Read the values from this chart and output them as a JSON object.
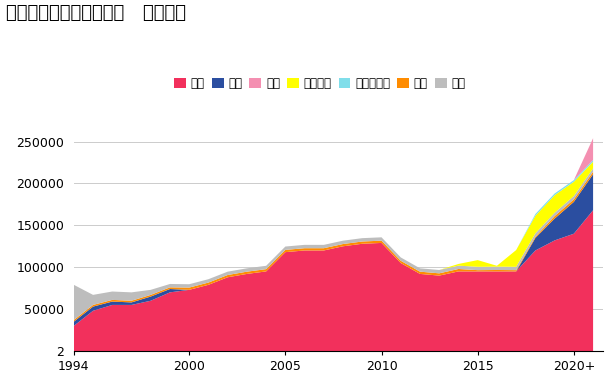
{
  "title": "全球主要国家稀土矿产量   单位：吨",
  "years": [
    1994,
    1995,
    1996,
    1997,
    1998,
    1999,
    2000,
    2001,
    2002,
    2003,
    2004,
    2005,
    2006,
    2007,
    2008,
    2009,
    2010,
    2011,
    2012,
    2013,
    2014,
    2015,
    2016,
    2017,
    2018,
    2019,
    2020,
    2021
  ],
  "series": {
    "中国": [
      30000,
      48000,
      55000,
      55000,
      60000,
      70000,
      73000,
      79000,
      88000,
      92000,
      95000,
      118000,
      120000,
      120000,
      125000,
      128000,
      129000,
      105000,
      92000,
      90000,
      95000,
      95000,
      95000,
      95000,
      120000,
      132000,
      140000,
      168000
    ],
    "美国": [
      5000,
      5000,
      4000,
      3000,
      5000,
      4000,
      0,
      0,
      0,
      0,
      0,
      0,
      0,
      0,
      0,
      0,
      0,
      0,
      0,
      0,
      0,
      0,
      0,
      0,
      15000,
      26000,
      38000,
      43000
    ],
    "印度": [
      2000,
      2000,
      2000,
      2000,
      2000,
      2000,
      2700,
      2700,
      2700,
      2700,
      2700,
      2700,
      2700,
      2700,
      2700,
      2700,
      2700,
      2700,
      2700,
      2700,
      2900,
      1500,
      1700,
      1500,
      1500,
      3000,
      3000,
      3000
    ],
    "其他": [
      42000,
      12000,
      10000,
      10000,
      6000,
      4000,
      4000,
      4000,
      4000,
      4000,
      4000,
      4000,
      4000,
      4000,
      4000,
      4000,
      4000,
      4000,
      4000,
      4000,
      4000,
      4000,
      4000,
      4000,
      4000,
      4000,
      4000,
      4000
    ],
    "澳大利亚": [
      0,
      0,
      0,
      0,
      0,
      0,
      0,
      0,
      0,
      0,
      0,
      0,
      0,
      0,
      0,
      0,
      0,
      0,
      0,
      0,
      2000,
      8000,
      1000,
      20000,
      21000,
      21000,
      17000,
      8000
    ],
    "马达加斯加": [
      0,
      0,
      0,
      0,
      0,
      0,
      0,
      0,
      0,
      0,
      0,
      0,
      0,
      0,
      0,
      0,
      0,
      0,
      0,
      0,
      0,
      0,
      0,
      0,
      2000,
      2000,
      2000,
      2000
    ],
    "缅甸": [
      0,
      0,
      0,
      0,
      0,
      0,
      0,
      0,
      0,
      0,
      0,
      0,
      0,
      0,
      0,
      0,
      0,
      0,
      0,
      0,
      0,
      0,
      0,
      0,
      0,
      0,
      0,
      26000
    ]
  },
  "stack_order": [
    "中国",
    "美国",
    "印度",
    "其他",
    "澳大利亚",
    "马达加斯加",
    "缅甸"
  ],
  "legend_order": [
    "中国",
    "美国",
    "缅甸",
    "澳大利亚",
    "马达加斯加",
    "印度",
    "其他"
  ],
  "colors": {
    "中国": "#F2305C",
    "美国": "#2B4EA0",
    "缅甸": "#F48FB1",
    "澳大利亚": "#FFFF00",
    "马达加斯加": "#80DEEA",
    "印度": "#FF8C00",
    "其他": "#BDBDBD"
  },
  "ylim": [
    0,
    270000
  ],
  "yticks": [
    2,
    50000,
    100000,
    150000,
    200000,
    250000
  ],
  "ytick_labels": [
    "2",
    "50000",
    "100000",
    "150000",
    "200000",
    "250000"
  ],
  "xticks": [
    1994,
    2000,
    2005,
    2010,
    2015,
    2020
  ],
  "xtick_labels": [
    "1994",
    "2000",
    "2005",
    "2010",
    "2015",
    "2020+"
  ],
  "bg_color": "#FFFFFF"
}
